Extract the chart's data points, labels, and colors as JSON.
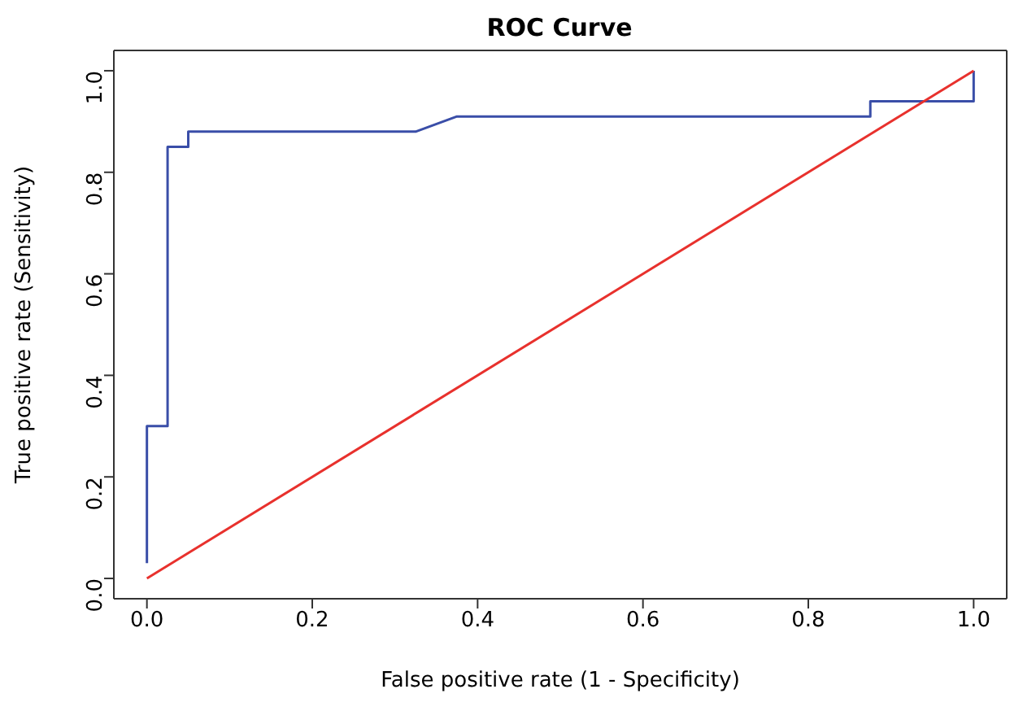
{
  "chart_data": {
    "type": "line",
    "title": "ROC Curve",
    "xlabel": "False positive rate (1 - Specificity)",
    "ylabel": "True positive rate (Sensitivity)",
    "xlim": [
      -0.04,
      1.04
    ],
    "ylim": [
      -0.04,
      1.04
    ],
    "xticks": [
      {
        "value": 0,
        "label": "0.0"
      },
      0.2,
      0.4,
      0.6,
      0.8,
      {
        "value": 1,
        "label": "1.0"
      }
    ],
    "yticks": [
      {
        "value": 0,
        "label": "0.0"
      },
      0.2,
      0.4,
      0.6,
      0.8,
      {
        "value": 1,
        "label": "1.0"
      }
    ],
    "marker": "none",
    "line_style": "solid",
    "series": [
      {
        "color": "#3a4ea8",
        "x": [
          0,
          0,
          0.025,
          0.025,
          0.05,
          0.05,
          0.325,
          0.375,
          0.875,
          0.875,
          1,
          1
        ],
        "values": [
          0.03,
          0.3,
          0.3,
          0.85,
          0.85,
          0.88,
          0.88,
          0.91,
          0.91,
          0.94,
          0.94,
          1
        ]
      },
      {
        "color": "#e8312d",
        "x": [
          0,
          1
        ],
        "values": [
          0,
          1
        ]
      }
    ]
  }
}
